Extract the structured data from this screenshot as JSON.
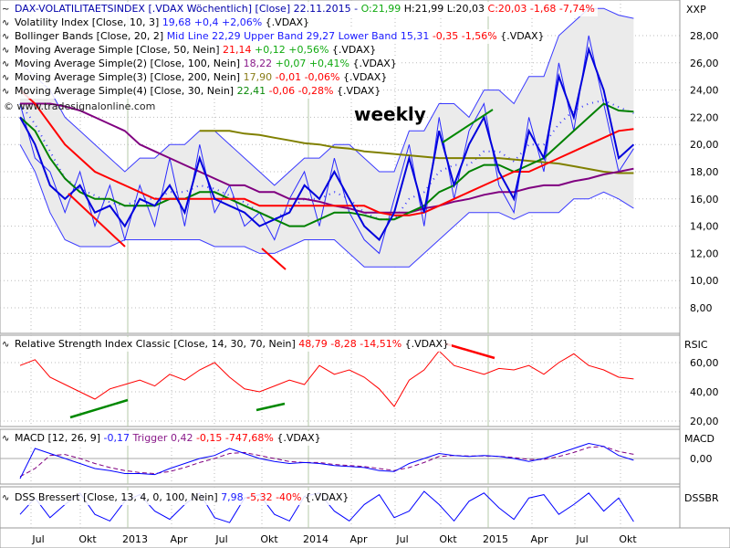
{
  "legend": {
    "title": "DAX-VOLATILITAETSINDEX [.VDAX  Wöchentlich] [Close] 22.11.2015 -",
    "open": "O:21,99",
    "hl": "H:21,99 L:20,03",
    "close": "C:20,03 -1,68 -7,74%",
    "vi_label": "Volatility Index [Close, 10, 3]",
    "vi_val": "19,68 +0,4 +2,06%",
    "vi_sym": "{.VDAX}",
    "bb_label": "Bollinger Bands [Close, 20, 2]",
    "bb_val": "Mid Line 22,29 Upper Band 29,27 Lower Band 15,31",
    "bb_chg": "-0,35 -1,56%",
    "bb_sym": "{.VDAX}",
    "ma1_label": "Moving Average Simple [Close, 50, Nein]",
    "ma1_val": "21,14",
    "ma1_chg": "+0,12 +0,56%",
    "ma1_sym": "{.VDAX}",
    "ma2_label": "Moving Average Simple(2) [Close, 100, Nein]",
    "ma2_val": "18,22",
    "ma2_chg": "+0,07 +0,41%",
    "ma2_sym": "{.VDAX}",
    "ma3_label": "Moving Average Simple(3) [Close, 200, Nein]",
    "ma3_val": "17,90",
    "ma3_chg": "-0,01 -0,06%",
    "ma3_sym": "{.VDAX}",
    "ma4_label": "Moving Average Simple(4) [Close, 30, Nein]",
    "ma4_val": "22,41",
    "ma4_chg": "-0,06 -0,28%",
    "ma4_sym": "{.VDAX}",
    "rsi_label": "Relative Strength Index Classic [Close, 14, 30, 70, Nein]",
    "rsi_val": "48,79 -8,28 -14,51%",
    "rsi_sym": "{.VDAX}",
    "macd_label": "MACD [12, 26, 9]",
    "macd_val": "-0,17",
    "macd_trig": "Trigger 0,42",
    "macd_chg": "-0,15 -747,68%",
    "macd_sym": "{.VDAX}",
    "dss_label": "DSS Bressert [Close, 13, 4, 0, 100, Nein]",
    "dss_val": "7,98",
    "dss_chg": "-5,32 -40%",
    "dss_sym": "{.VDAX}"
  },
  "watermark": "© www.tradesignalonline.com",
  "annotation": "weekly",
  "pane_labels": {
    "main": "XXP",
    "rsi": "RSIC",
    "macd": "MACD",
    "dss": "DSSBR"
  },
  "colors": {
    "close": "#0000dd",
    "vi": "#2a2aff",
    "bands": "#3a3aff",
    "band_fill": "#ebebeb",
    "ma50": "#ff0000",
    "ma100": "#800080",
    "ma200": "#808000",
    "ma30": "#008000",
    "rsi": "#ff0000",
    "macd": "#0000ff",
    "trigger": "#800080",
    "dss": "#0000ff"
  },
  "chart_data": {
    "type": "line",
    "x": [
      "2012-06",
      "2012-07",
      "2012-08",
      "2012-09",
      "2012-10",
      "2012-11",
      "2012-12",
      "2013-01",
      "2013-02",
      "2013-03",
      "2013-04",
      "2013-05",
      "2013-06",
      "2013-07",
      "2013-08",
      "2013-09",
      "2013-10",
      "2013-11",
      "2013-12",
      "2014-01",
      "2014-02",
      "2014-03",
      "2014-04",
      "2014-05",
      "2014-06",
      "2014-07",
      "2014-08",
      "2014-09",
      "2014-10",
      "2014-11",
      "2014-12",
      "2015-01",
      "2015-02",
      "2015-03",
      "2015-04",
      "2015-05",
      "2015-06",
      "2015-07",
      "2015-08",
      "2015-09",
      "2015-10",
      "2015-11"
    ],
    "x_tick_labels": [
      "Jul",
      "Okt",
      "2013",
      "Apr",
      "Jul",
      "Okt",
      "2014",
      "Apr",
      "Jul",
      "Okt",
      "2015",
      "Apr",
      "Jul",
      "Okt"
    ],
    "y_tick_labels": [
      "28,00",
      "26,00",
      "24,00",
      "22,00",
      "20,00",
      "18,00",
      "16,00",
      "14,00",
      "12,00",
      "10,00",
      "8,00"
    ],
    "ylim": [
      6.5,
      30.5
    ],
    "main": {
      "close": [
        22,
        20,
        17,
        16,
        17,
        15,
        15.5,
        14,
        16,
        15.5,
        17,
        15,
        19,
        16,
        15.5,
        15,
        14,
        14.5,
        15,
        17,
        16,
        18,
        16,
        14,
        13,
        15,
        19,
        15,
        21,
        17,
        20,
        22,
        18,
        16,
        21,
        19,
        25,
        22,
        27,
        24,
        19,
        20
      ],
      "volatility_index": [
        23,
        19,
        18,
        15,
        18,
        14,
        17,
        13,
        17,
        14,
        19,
        14,
        20,
        15,
        17,
        14,
        15,
        13,
        16,
        18,
        14,
        19,
        15,
        13,
        12,
        16,
        20,
        14,
        22,
        16,
        21,
        23,
        17,
        15,
        22,
        18,
        26,
        21,
        28,
        23,
        18,
        19.7
      ],
      "upper_band": [
        26,
        25,
        24,
        22,
        21,
        20,
        19,
        18,
        19,
        19,
        20,
        20,
        21,
        21,
        20,
        19,
        18,
        17,
        18,
        19,
        19,
        20,
        20,
        19,
        18,
        18,
        21,
        21,
        23,
        23,
        22,
        24,
        24,
        23,
        25,
        25,
        28,
        29,
        30,
        30,
        29.5,
        29.27
      ],
      "lower_band": [
        20,
        18,
        15,
        13,
        12.5,
        12.5,
        12.5,
        13,
        13,
        13,
        13,
        13,
        13,
        12.5,
        12.5,
        12.5,
        12,
        12,
        12.5,
        13,
        13,
        13,
        12,
        11,
        11,
        11,
        11,
        12,
        13,
        14,
        15,
        15,
        15,
        14.5,
        15,
        15,
        15,
        16,
        16,
        16.5,
        16,
        15.31
      ],
      "ma50": [
        24,
        23,
        21.5,
        20,
        19,
        18,
        17.5,
        17,
        16.5,
        16,
        16,
        16,
        16,
        16,
        16,
        16,
        15.5,
        15.5,
        15.5,
        15.5,
        15.5,
        15.5,
        15.5,
        15.5,
        15,
        14.8,
        14.8,
        15,
        15.5,
        16,
        16.5,
        17,
        17.5,
        18,
        18,
        18.5,
        19,
        19.5,
        20,
        20.5,
        21,
        21.14
      ],
      "ma100": [
        23,
        23,
        23,
        22.8,
        22.5,
        22,
        21.5,
        21,
        20,
        19.5,
        19,
        18.5,
        18,
        17.5,
        17,
        17,
        16.5,
        16.5,
        16,
        16,
        15.8,
        15.5,
        15.3,
        15,
        15,
        15,
        15,
        15.3,
        15.5,
        15.8,
        16,
        16.3,
        16.5,
        16.5,
        16.8,
        17,
        17,
        17.3,
        17.5,
        17.8,
        18,
        18.22
      ],
      "ma200": [
        null,
        null,
        null,
        null,
        null,
        null,
        null,
        null,
        null,
        null,
        null,
        null,
        21,
        21,
        21,
        20.8,
        20.7,
        20.5,
        20.3,
        20.1,
        20,
        19.8,
        19.7,
        19.5,
        19.4,
        19.3,
        19.2,
        19.1,
        19,
        19,
        19,
        19,
        19,
        18.9,
        18.8,
        18.7,
        18.6,
        18.4,
        18.2,
        18,
        17.9,
        17.9
      ],
      "ma30": [
        22,
        21,
        19,
        17.5,
        16.5,
        16,
        16,
        15.5,
        15.5,
        15.5,
        16,
        16,
        16.5,
        16.5,
        16,
        15.5,
        15,
        14.5,
        14,
        14,
        14.5,
        15,
        15,
        14.8,
        14.5,
        14.5,
        15,
        15.5,
        16.5,
        17,
        18,
        18.5,
        18.5,
        18,
        18.5,
        19,
        20,
        21,
        22,
        23,
        22.5,
        22.41
      ]
    },
    "rsi": {
      "y_tick_labels": [
        "60,00",
        "40,00",
        "20,00"
      ],
      "ylim": [
        15,
        75
      ],
      "values": [
        58,
        62,
        50,
        45,
        40,
        35,
        42,
        45,
        48,
        44,
        52,
        48,
        55,
        60,
        50,
        42,
        40,
        44,
        48,
        45,
        58,
        52,
        55,
        50,
        42,
        30,
        48,
        55,
        68,
        58,
        55,
        52,
        56,
        55,
        58,
        52,
        60,
        66,
        58,
        55,
        50,
        48.79
      ]
    },
    "macd": {
      "y_tick_labels": [
        "0,00"
      ],
      "ylim": [
        -2.2,
        2.2
      ],
      "macd": [
        -2,
        1,
        0.5,
        0,
        -0.5,
        -1,
        -1.2,
        -1.5,
        -1.5,
        -1.6,
        -1,
        -0.5,
        0,
        0.3,
        1,
        0.5,
        0,
        -0.3,
        -0.5,
        -0.4,
        -0.5,
        -0.7,
        -0.8,
        -0.9,
        -1.2,
        -1.3,
        -0.5,
        0,
        0.5,
        0.3,
        0.2,
        0.3,
        0.2,
        0,
        -0.3,
        0,
        0.5,
        1,
        1.5,
        1.2,
        0.3,
        -0.17
      ],
      "trigger": [
        -1.8,
        -1,
        0.3,
        0.4,
        0,
        -0.5,
        -0.9,
        -1.2,
        -1.4,
        -1.5,
        -1.3,
        -0.9,
        -0.4,
        0,
        0.5,
        0.6,
        0.3,
        0,
        -0.3,
        -0.4,
        -0.4,
        -0.6,
        -0.7,
        -0.8,
        -1,
        -1.2,
        -0.9,
        -0.4,
        0.2,
        0.3,
        0.25,
        0.25,
        0.22,
        0.1,
        -0.1,
        -0.1,
        0.2,
        0.6,
        1.1,
        1.2,
        0.7,
        0.42
      ]
    },
    "dss": {
      "ylim": [
        0,
        100
      ],
      "values": [
        30,
        80,
        20,
        60,
        95,
        30,
        10,
        70,
        90,
        40,
        15,
        60,
        95,
        20,
        5,
        80,
        90,
        30,
        10,
        85,
        95,
        40,
        10,
        60,
        90,
        20,
        40,
        100,
        60,
        10,
        70,
        95,
        50,
        15,
        80,
        90,
        30,
        60,
        95,
        40,
        80,
        7.98
      ]
    }
  }
}
